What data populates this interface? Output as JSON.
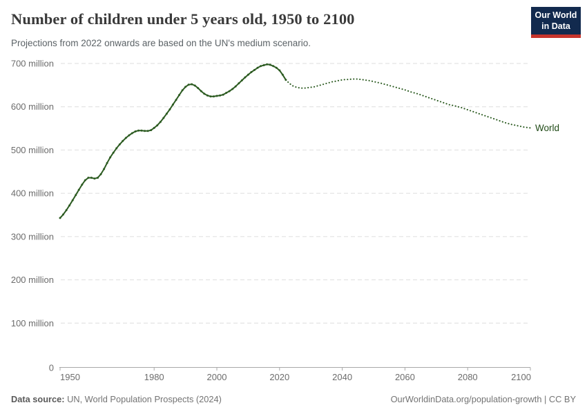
{
  "header": {
    "title": "Number of children under 5 years old, 1950 to 2100",
    "subtitle": "Projections from 2022 onwards are based on the UN's medium scenario.",
    "logo": {
      "line1": "Our World",
      "line2": "in Data"
    }
  },
  "footer": {
    "source_label": "Data source:",
    "source_rest": " UN, World Population Prospects (2024)",
    "credit": "OurWorldinData.org/population-growth | CC BY"
  },
  "colors": {
    "line_green": "#2C5B21",
    "entity_label_green": "#1F4A16",
    "logo_navy": "#122A4E",
    "logo_red": "#C7342C",
    "grid": "#DEDEDE",
    "axis": "#A8A8A8",
    "tick_text": "#6C6C6C"
  },
  "chart_data": {
    "type": "line",
    "title": "Number of children under 5 years old, 1950 to 2100",
    "subtitle": "Projections from 2022 onwards are based on the UN's medium scenario.",
    "entity_label": "World",
    "values_unit": "millions of children under 5",
    "xlim": [
      1950,
      2100
    ],
    "ylim": [
      0,
      700
    ],
    "grid": true,
    "legend_position": "end-of-line label",
    "x_ticks": [
      "1950",
      "1980",
      "2000",
      "2020",
      "2040",
      "2060",
      "2080",
      "2100"
    ],
    "y_ticks": [
      {
        "v": 700,
        "label": "700 million"
      },
      {
        "v": 600,
        "label": "600 million"
      },
      {
        "v": 500,
        "label": "500 million"
      },
      {
        "v": 400,
        "label": "400 million"
      },
      {
        "v": 300,
        "label": "300 million"
      },
      {
        "v": 200,
        "label": "200 million"
      },
      {
        "v": 100,
        "label": "100 million"
      },
      {
        "v": 0,
        "label": "0"
      }
    ],
    "series": [
      {
        "name": "World — estimates",
        "style": "solid",
        "markers": true,
        "points": [
          [
            1950,
            343
          ],
          [
            1951,
            351
          ],
          [
            1952,
            361
          ],
          [
            1953,
            372
          ],
          [
            1954,
            384
          ],
          [
            1955,
            396
          ],
          [
            1956,
            408
          ],
          [
            1957,
            420
          ],
          [
            1958,
            430
          ],
          [
            1959,
            436
          ],
          [
            1960,
            436
          ],
          [
            1961,
            434
          ],
          [
            1962,
            436
          ],
          [
            1963,
            444
          ],
          [
            1964,
            456
          ],
          [
            1965,
            470
          ],
          [
            1966,
            483
          ],
          [
            1967,
            494
          ],
          [
            1968,
            504
          ],
          [
            1969,
            513
          ],
          [
            1970,
            521
          ],
          [
            1971,
            528
          ],
          [
            1972,
            534
          ],
          [
            1973,
            539
          ],
          [
            1974,
            543
          ],
          [
            1975,
            545
          ],
          [
            1976,
            545
          ],
          [
            1977,
            544
          ],
          [
            1978,
            544
          ],
          [
            1979,
            546
          ],
          [
            1980,
            551
          ],
          [
            1981,
            557
          ],
          [
            1982,
            565
          ],
          [
            1983,
            574
          ],
          [
            1984,
            584
          ],
          [
            1985,
            594
          ],
          [
            1986,
            605
          ],
          [
            1987,
            616
          ],
          [
            1988,
            627
          ],
          [
            1989,
            638
          ],
          [
            1990,
            646
          ],
          [
            1991,
            651
          ],
          [
            1992,
            652
          ],
          [
            1993,
            649
          ],
          [
            1994,
            643
          ],
          [
            1995,
            636
          ],
          [
            1996,
            630
          ],
          [
            1997,
            626
          ],
          [
            1998,
            624
          ],
          [
            1999,
            624
          ],
          [
            2000,
            625
          ],
          [
            2001,
            626
          ],
          [
            2002,
            628
          ],
          [
            2003,
            632
          ],
          [
            2004,
            636
          ],
          [
            2005,
            641
          ],
          [
            2006,
            647
          ],
          [
            2007,
            654
          ],
          [
            2008,
            661
          ],
          [
            2009,
            668
          ],
          [
            2010,
            674
          ],
          [
            2011,
            680
          ],
          [
            2012,
            685
          ],
          [
            2013,
            690
          ],
          [
            2014,
            694
          ],
          [
            2015,
            696
          ],
          [
            2016,
            698
          ],
          [
            2017,
            697
          ],
          [
            2018,
            694
          ],
          [
            2019,
            690
          ],
          [
            2020,
            684
          ],
          [
            2021,
            674
          ],
          [
            2022,
            662
          ]
        ]
      },
      {
        "name": "World — UN medium projection",
        "style": "dotted",
        "markers": false,
        "points": [
          [
            2022,
            662
          ],
          [
            2023,
            655
          ],
          [
            2024,
            649
          ],
          [
            2025,
            646
          ],
          [
            2026,
            644
          ],
          [
            2027,
            643
          ],
          [
            2028,
            643
          ],
          [
            2029,
            644
          ],
          [
            2030,
            645
          ],
          [
            2031,
            646
          ],
          [
            2032,
            648
          ],
          [
            2033,
            650
          ],
          [
            2034,
            652
          ],
          [
            2035,
            654
          ],
          [
            2036,
            656
          ],
          [
            2037,
            658
          ],
          [
            2038,
            659
          ],
          [
            2039,
            661
          ],
          [
            2040,
            662
          ],
          [
            2041,
            663
          ],
          [
            2042,
            663
          ],
          [
            2043,
            664
          ],
          [
            2044,
            664
          ],
          [
            2045,
            664
          ],
          [
            2046,
            663
          ],
          [
            2047,
            662
          ],
          [
            2048,
            661
          ],
          [
            2049,
            660
          ],
          [
            2050,
            658
          ],
          [
            2052,
            655
          ],
          [
            2054,
            651
          ],
          [
            2056,
            647
          ],
          [
            2058,
            643
          ],
          [
            2060,
            639
          ],
          [
            2062,
            634
          ],
          [
            2064,
            630
          ],
          [
            2066,
            625
          ],
          [
            2068,
            620
          ],
          [
            2070,
            615
          ],
          [
            2072,
            610
          ],
          [
            2074,
            605
          ],
          [
            2076,
            602
          ],
          [
            2078,
            598
          ],
          [
            2080,
            593
          ],
          [
            2082,
            588
          ],
          [
            2084,
            583
          ],
          [
            2086,
            578
          ],
          [
            2088,
            573
          ],
          [
            2090,
            568
          ],
          [
            2092,
            563
          ],
          [
            2094,
            559
          ],
          [
            2096,
            556
          ],
          [
            2098,
            553
          ],
          [
            2100,
            551
          ]
        ]
      }
    ]
  }
}
